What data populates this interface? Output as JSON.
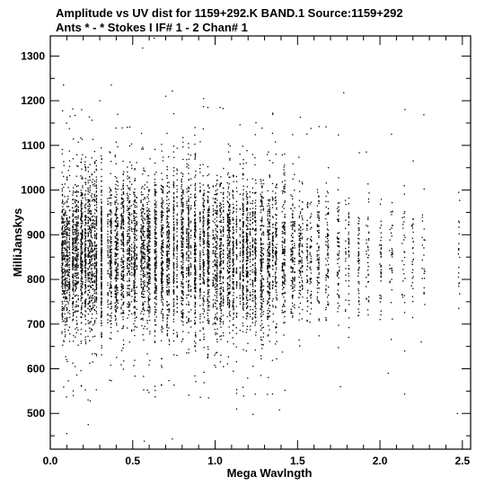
{
  "header": {
    "line1": "Amplitude vs UV dist for 1159+292.K BAND.1   Source:1159+292",
    "line2": "Ants * - *     Stokes I  IF# 1 - 2  Chan# 1"
  },
  "chart_data": {
    "type": "scatter",
    "title": "Amplitude vs UV dist for 1159+292.K BAND.1   Source:1159+292",
    "subtitle": "Ants * - *     Stokes I  IF# 1 - 2  Chan# 1",
    "xlabel": "Mega Wavlngth",
    "ylabel": "MilliJanskys",
    "xlim": [
      0.0,
      2.55
    ],
    "ylim": [
      420,
      1345
    ],
    "x_ticks": [
      "0.0",
      "0.5",
      "1.0",
      "1.5",
      "2.0",
      "2.5"
    ],
    "y_ticks": [
      "500",
      "600",
      "700",
      "800",
      "900",
      "1000",
      "1100",
      "1200",
      "1300"
    ],
    "grid": false,
    "legend": "none",
    "point_color": "#000000",
    "series": [
      {
        "values": {
          "x_groups": [
            0.07,
            0.1,
            0.13,
            0.16,
            0.19,
            0.22,
            0.25,
            0.28,
            0.32,
            0.36,
            0.4,
            0.44,
            0.48,
            0.52,
            0.56,
            0.6,
            0.64,
            0.68,
            0.72,
            0.76,
            0.8,
            0.84,
            0.88,
            0.92,
            0.96,
            1.0,
            1.04,
            1.08,
            1.12,
            1.16,
            1.2,
            1.24,
            1.28,
            1.32,
            1.36,
            1.42,
            1.47,
            1.52,
            1.57,
            1.62,
            1.68,
            1.74,
            1.8,
            1.87,
            1.93,
            2.0,
            2.07,
            2.14,
            2.2,
            2.26,
            2.47
          ],
          "y_center": [
            850,
            850,
            855,
            855,
            860,
            860,
            855,
            860,
            860,
            860,
            860,
            865,
            865,
            860,
            860,
            860,
            860,
            860,
            860,
            865,
            865,
            865,
            860,
            860,
            860,
            860,
            860,
            860,
            860,
            860,
            855,
            855,
            855,
            855,
            860,
            870,
            860,
            860,
            855,
            860,
            850,
            860,
            850,
            855,
            860,
            860,
            860,
            860,
            860,
            855,
            860
          ],
          "y_spread": [
            110,
            110,
            110,
            115,
            115,
            115,
            115,
            115,
            115,
            115,
            115,
            110,
            110,
            110,
            110,
            110,
            110,
            115,
            115,
            115,
            110,
            110,
            110,
            110,
            110,
            110,
            110,
            110,
            110,
            110,
            110,
            110,
            110,
            105,
            105,
            100,
            100,
            100,
            95,
            95,
            95,
            90,
            90,
            90,
            85,
            85,
            85,
            85,
            85,
            80,
            80
          ],
          "count": [
            200,
            210,
            220,
            230,
            230,
            230,
            220,
            220,
            210,
            210,
            210,
            210,
            210,
            210,
            210,
            210,
            210,
            210,
            210,
            210,
            210,
            210,
            210,
            210,
            210,
            210,
            210,
            210,
            200,
            200,
            200,
            200,
            190,
            180,
            170,
            150,
            140,
            120,
            100,
            90,
            80,
            70,
            60,
            50,
            40,
            40,
            35,
            30,
            30,
            25,
            20
          ],
          "outliers": [
            [
              0.08,
              1235
            ],
            [
              0.12,
              1165
            ],
            [
              0.19,
              1180
            ],
            [
              0.3,
              1200
            ],
            [
              0.37,
              1235
            ],
            [
              0.56,
              1318
            ],
            [
              0.63,
              1340
            ],
            [
              0.7,
              1210
            ],
            [
              0.74,
              1222
            ],
            [
              0.93,
              1205
            ],
            [
              1.03,
              1185
            ],
            [
              1.78,
              1218
            ],
            [
              2.07,
              1125
            ],
            [
              0.1,
              455
            ],
            [
              0.23,
              475
            ],
            [
              0.57,
              438
            ],
            [
              0.74,
              443
            ],
            [
              0.96,
              535
            ],
            [
              1.13,
              545
            ],
            [
              1.13,
              510
            ],
            [
              1.23,
              498
            ],
            [
              1.39,
              508
            ],
            [
              1.76,
              560
            ],
            [
              2.05,
              590
            ],
            [
              2.15,
              640
            ],
            [
              2.25,
              660
            ],
            [
              2.47,
              500
            ]
          ]
        }
      }
    ]
  }
}
